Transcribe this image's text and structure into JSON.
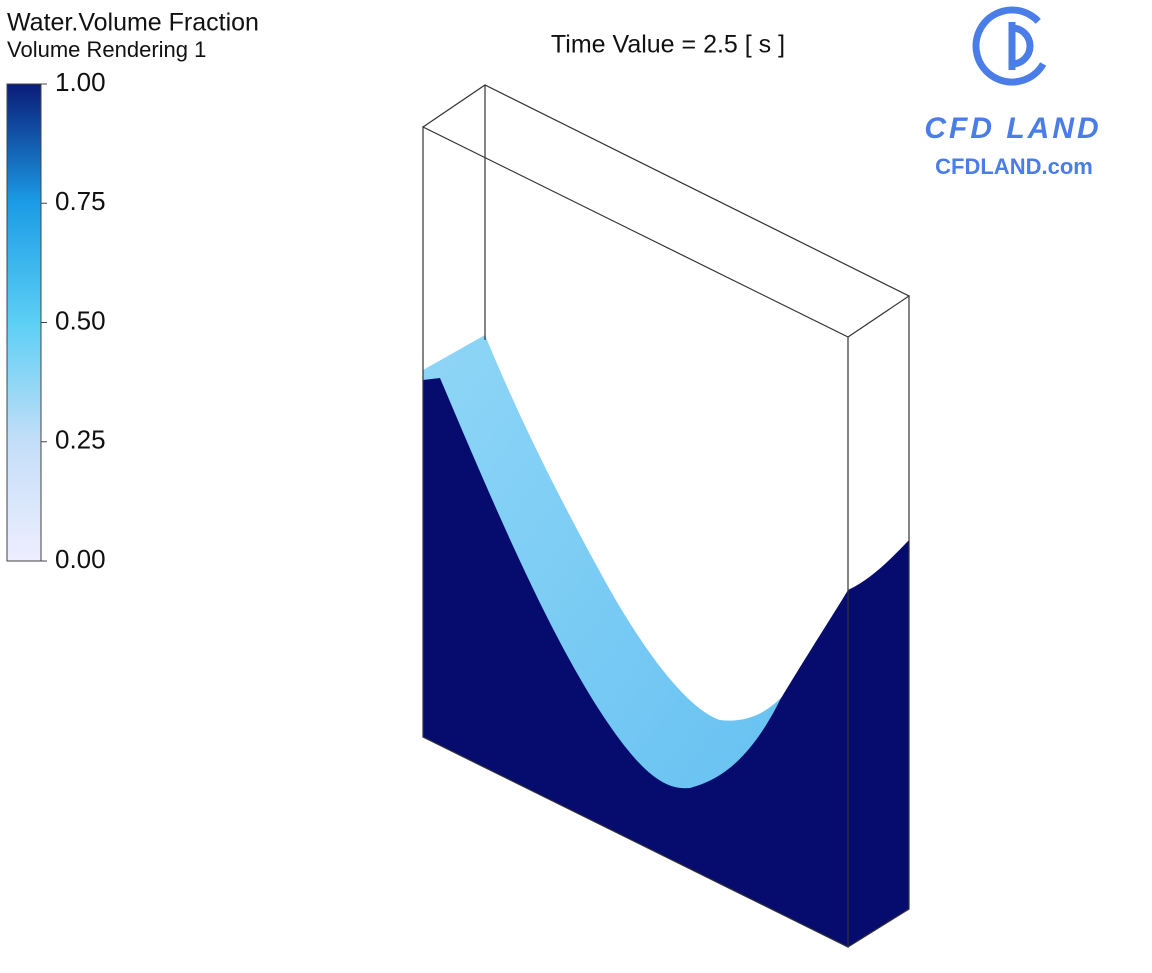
{
  "legend": {
    "title": "Water.Volume Fraction",
    "subtitle": "Volume Rendering 1",
    "range": [
      0,
      1
    ],
    "ticks": [
      {
        "value": 1,
        "label": "1.00"
      },
      {
        "value": 0.75,
        "label": "0.75"
      },
      {
        "value": 0.5,
        "label": "0.50"
      },
      {
        "value": 0.25,
        "label": "0.25"
      },
      {
        "value": 0,
        "label": "0.00"
      }
    ]
  },
  "time_label": "Time Value = 2.5 [ s ]",
  "logo": {
    "name": "CFD LAND",
    "url": "CFDLAND.com"
  }
}
